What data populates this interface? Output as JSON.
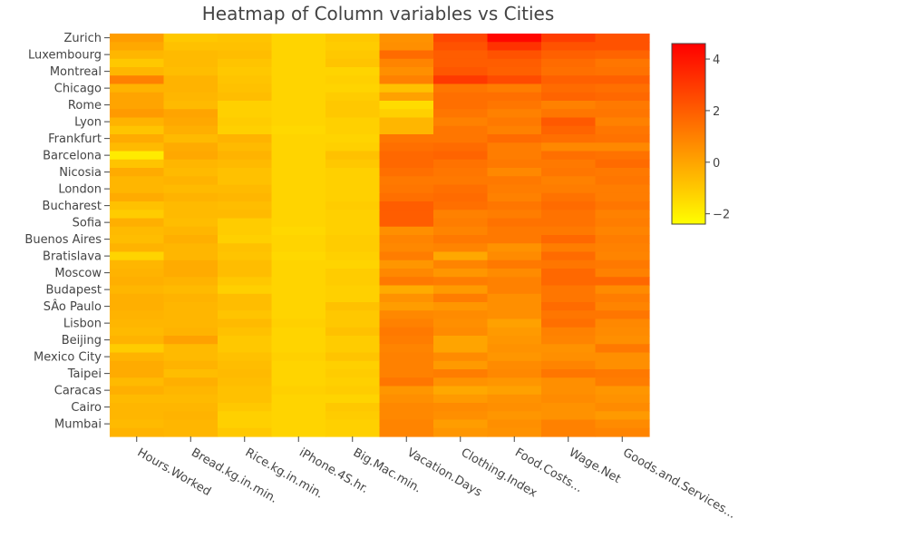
{
  "chart_data": {
    "type": "heatmap",
    "title": "Heatmap of Column variables vs Cities",
    "x_labels": [
      "Hours.Worked",
      "Bread.kg.in.min.",
      "Rice.kg.in.min.",
      "iPhone.4S.hr.",
      "Big.Mac.min.",
      "Vacation.Days",
      "Clothing.Index",
      "Food.Costs...",
      "Wage.Net",
      "Goods.and.Services..."
    ],
    "y_tick_labels": [
      "Zurich",
      "Luxembourg",
      "Montreal",
      "Chicago",
      "Rome",
      "Lyon",
      "Frankfurt",
      "Barcelona",
      "Nicosia",
      "London",
      "Bucharest",
      "Sofia",
      "Buenos Aires",
      "Bratislava",
      "Moscow",
      "Budapest",
      "SÂo Paulo",
      "Lisbon",
      "Beijing",
      "Mexico City",
      "Taipei",
      "Caracas",
      "Cairo",
      "Mumbai"
    ],
    "colorbar": {
      "min": -2.4,
      "max": 4.6,
      "ticks": [
        4,
        2,
        0,
        -2
      ],
      "tick_labels": [
        "4",
        "2",
        "0",
        "−2"
      ]
    },
    "colorscale": [
      "#ffff00",
      "#ffc800",
      "#ff9600",
      "#ff6400",
      "#ff3200",
      "#ff0000"
    ],
    "row_count": 48,
    "z": [
      [
        0.2,
        -1.0,
        -0.9,
        -1.3,
        -1.0,
        0.5,
        2.6,
        4.4,
        2.9,
        2.3
      ],
      [
        -0.1,
        -0.8,
        -0.8,
        -1.3,
        -1.1,
        0.6,
        2.3,
        3.2,
        2.3,
        2.3
      ],
      [
        -0.5,
        -0.6,
        -0.7,
        -1.3,
        -1.0,
        1.6,
        2.0,
        2.3,
        1.9,
        1.8
      ],
      [
        -1.0,
        -0.6,
        -0.9,
        -1.3,
        -0.9,
        0.9,
        2.0,
        2.0,
        1.6,
        1.3
      ],
      [
        -0.5,
        -0.7,
        -1.0,
        -1.3,
        -1.3,
        0.6,
        2.2,
        1.9,
        1.5,
        1.4
      ],
      [
        1.0,
        -0.4,
        -0.9,
        -1.3,
        -1.2,
        1.0,
        3.0,
        2.5,
        1.9,
        1.9
      ],
      [
        -0.4,
        -0.4,
        -0.8,
        -1.3,
        -1.3,
        -0.8,
        1.3,
        1.1,
        1.6,
        1.5
      ],
      [
        0.0,
        -0.5,
        -0.7,
        -1.3,
        -1.1,
        0.1,
        1.5,
        1.5,
        1.8,
        1.7
      ],
      [
        0.0,
        -0.6,
        -1.2,
        -1.3,
        -1.0,
        -1.5,
        1.5,
        1.3,
        1.0,
        1.2
      ],
      [
        0.3,
        0.0,
        -1.2,
        -1.3,
        -1.0,
        -1.2,
        1.3,
        1.0,
        1.3,
        1.3
      ],
      [
        -0.4,
        -0.1,
        -1.1,
        -1.3,
        -1.2,
        -0.5,
        1.0,
        1.2,
        2.1,
        1.0
      ],
      [
        -0.9,
        -0.3,
        -1.2,
        -1.4,
        -1.2,
        -0.5,
        1.3,
        1.0,
        1.8,
        1.3
      ],
      [
        -0.2,
        -0.6,
        -0.4,
        -1.3,
        -1.3,
        1.3,
        1.3,
        1.6,
        1.5,
        1.4
      ],
      [
        -0.6,
        -0.2,
        -0.6,
        -1.3,
        -1.2,
        1.5,
        1.6,
        1.1,
        0.8,
        0.8
      ],
      [
        -1.9,
        -0.1,
        -0.4,
        -1.3,
        -0.8,
        1.7,
        1.8,
        1.1,
        1.5,
        1.4
      ],
      [
        -0.9,
        -0.5,
        -0.6,
        -1.3,
        -1.0,
        1.7,
        1.4,
        1.2,
        1.2,
        1.6
      ],
      [
        -0.2,
        -0.6,
        -0.8,
        -1.3,
        -1.2,
        1.5,
        1.3,
        0.8,
        1.3,
        1.2
      ],
      [
        -0.5,
        -0.4,
        -0.8,
        -1.3,
        -1.2,
        1.2,
        1.2,
        1.2,
        1.0,
        1.3
      ],
      [
        -0.5,
        -0.6,
        -0.6,
        -1.3,
        -1.2,
        1.3,
        1.5,
        1.1,
        1.1,
        1.1
      ],
      [
        -0.2,
        -0.4,
        -0.5,
        -1.3,
        -1.2,
        1.5,
        1.6,
        1.0,
        1.4,
        1.1
      ],
      [
        -0.8,
        -0.6,
        -0.7,
        -1.3,
        -1.1,
        2.0,
        1.5,
        1.3,
        1.6,
        1.3
      ],
      [
        -1.1,
        -0.6,
        -0.6,
        -1.3,
        -1.2,
        2.0,
        1.0,
        1.1,
        1.4,
        1.0
      ],
      [
        -0.3,
        -0.7,
        -1.1,
        -1.3,
        -1.2,
        2.0,
        1.1,
        1.4,
        1.4,
        1.1
      ],
      [
        -0.6,
        -0.5,
        -1.1,
        -1.4,
        -1.2,
        0.6,
        0.9,
        1.2,
        1.2,
        0.9
      ],
      [
        -0.7,
        -0.3,
        -1.2,
        -1.3,
        -1.1,
        0.9,
        1.2,
        1.2,
        1.7,
        1.1
      ],
      [
        -0.4,
        -0.5,
        -0.8,
        -1.3,
        -1.1,
        0.8,
        0.9,
        0.5,
        1.1,
        1.0
      ],
      [
        -1.3,
        -0.5,
        -0.9,
        -1.4,
        -1.2,
        1.1,
        -0.1,
        0.7,
        1.6,
        0.9
      ],
      [
        -0.5,
        -0.2,
        -0.7,
        -1.3,
        -1.3,
        0.4,
        0.9,
        1.2,
        1.3,
        1.2
      ],
      [
        -0.4,
        -0.2,
        -0.7,
        -1.3,
        -1.1,
        0.8,
        0.4,
        0.7,
        1.7,
        1.0
      ],
      [
        -0.3,
        -0.4,
        -1.0,
        -1.3,
        -1.1,
        1.2,
        1.1,
        1.0,
        1.7,
        1.7
      ],
      [
        -0.5,
        -0.6,
        -1.2,
        -1.3,
        -1.2,
        -0.2,
        0.3,
        1.0,
        1.3,
        0.7
      ],
      [
        -0.3,
        -0.4,
        -0.7,
        -1.3,
        -1.2,
        0.5,
        1.1,
        0.6,
        1.3,
        1.1
      ],
      [
        -0.3,
        -0.5,
        -0.7,
        -1.3,
        -0.8,
        0.2,
        0.4,
        0.6,
        1.6,
        0.9
      ],
      [
        -0.4,
        -0.5,
        -0.9,
        -1.3,
        -1.0,
        0.8,
        0.7,
        0.6,
        1.3,
        1.3
      ],
      [
        -0.5,
        -0.5,
        -0.6,
        -1.2,
        -1.0,
        1.0,
        0.6,
        0.1,
        1.5,
        0.8
      ],
      [
        -0.6,
        -0.4,
        -0.8,
        -1.3,
        -0.8,
        1.2,
        0.7,
        0.3,
        1.0,
        0.7
      ],
      [
        -0.4,
        0.1,
        -1.0,
        -1.3,
        -1.1,
        1.1,
        0.0,
        0.4,
        0.9,
        0.6
      ],
      [
        -1.1,
        -0.6,
        -1.0,
        -1.3,
        -1.1,
        0.9,
        0.0,
        0.5,
        0.5,
        1.2
      ],
      [
        -0.4,
        -0.6,
        -0.8,
        -1.2,
        -0.9,
        1.0,
        0.7,
        0.4,
        0.6,
        0.6
      ],
      [
        -0.2,
        -0.4,
        -0.7,
        -1.3,
        -1.2,
        1.0,
        0.3,
        0.7,
        0.9,
        0.6
      ],
      [
        -0.2,
        -0.7,
        -0.6,
        -1.3,
        -1.1,
        1.0,
        1.1,
        0.8,
        1.3,
        1.2
      ],
      [
        -0.6,
        -0.3,
        -0.7,
        -1.3,
        -1.2,
        1.3,
        0.5,
        0.4,
        0.6,
        1.1
      ],
      [
        -0.3,
        -0.5,
        -0.8,
        -1.2,
        -1.1,
        0.4,
        -0.1,
        0.1,
        0.6,
        0.4
      ],
      [
        -0.6,
        -0.6,
        -0.8,
        -1.3,
        -1.3,
        0.6,
        0.3,
        0.5,
        0.7,
        0.5
      ],
      [
        -0.5,
        -0.5,
        -1.0,
        -1.3,
        -1.0,
        0.8,
        0.7,
        0.6,
        0.5,
        0.7
      ],
      [
        -0.5,
        -0.4,
        -1.2,
        -1.3,
        -1.1,
        0.8,
        0.6,
        0.4,
        0.5,
        0.3
      ],
      [
        -0.6,
        -0.5,
        -1.2,
        -1.3,
        -1.2,
        0.9,
        0.2,
        0.6,
        1.0,
        0.7
      ],
      [
        -0.4,
        -0.5,
        -1.0,
        -1.3,
        -1.2,
        0.9,
        0.4,
        0.5,
        1.0,
        0.9
      ]
    ]
  }
}
